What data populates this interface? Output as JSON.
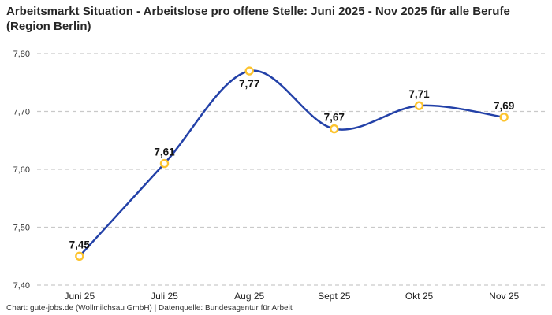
{
  "title": "Arbeitsmarkt Situation - Arbeitslose pro offene Stelle: Juni 2025 - Nov 2025 für alle Berufe (Region Berlin)",
  "footer": "Chart: gute-jobs.de (Wollmilchsau GmbH) | Datenquelle: Bundesagentur für Arbeit",
  "chart_data": {
    "type": "line",
    "line_style": "spline",
    "title": "Arbeitsmarkt Situation - Arbeitslose pro offene Stelle: Juni 2025 - Nov 2025 für alle Berufe (Region Berlin)",
    "categories": [
      "Juni 25",
      "Juli 25",
      "Aug 25",
      "Sept 25",
      "Okt 25",
      "Nov 25"
    ],
    "values": [
      7.45,
      7.61,
      7.77,
      7.67,
      7.71,
      7.69
    ],
    "value_labels": [
      "7,45",
      "7,61",
      "7,77",
      "7,67",
      "7,71",
      "7,69"
    ],
    "value_label_positions": [
      "above",
      "above",
      "below",
      "above",
      "above",
      "above"
    ],
    "xlabel": "",
    "ylabel": "",
    "ylim": [
      7.4,
      7.8
    ],
    "y_ticks": [
      {
        "value": 7.4,
        "label": "7,40"
      },
      {
        "value": 7.5,
        "label": "7,50"
      },
      {
        "value": 7.6,
        "label": "7,60"
      },
      {
        "value": 7.7,
        "label": "7,70"
      },
      {
        "value": 7.8,
        "label": "7,80"
      }
    ],
    "grid": "horizontal-dashed",
    "legend": "none",
    "colors": {
      "line": "#2341a8",
      "marker_stroke": "#fdc42f",
      "marker_fill": "#ffffff",
      "grid": "#c9c9c9",
      "y_tick_text": "#333333",
      "x_tick_text": "#1f1f1f",
      "value_label_text": "#141414",
      "title_text": "#262626",
      "footer_text": "#333333"
    }
  }
}
